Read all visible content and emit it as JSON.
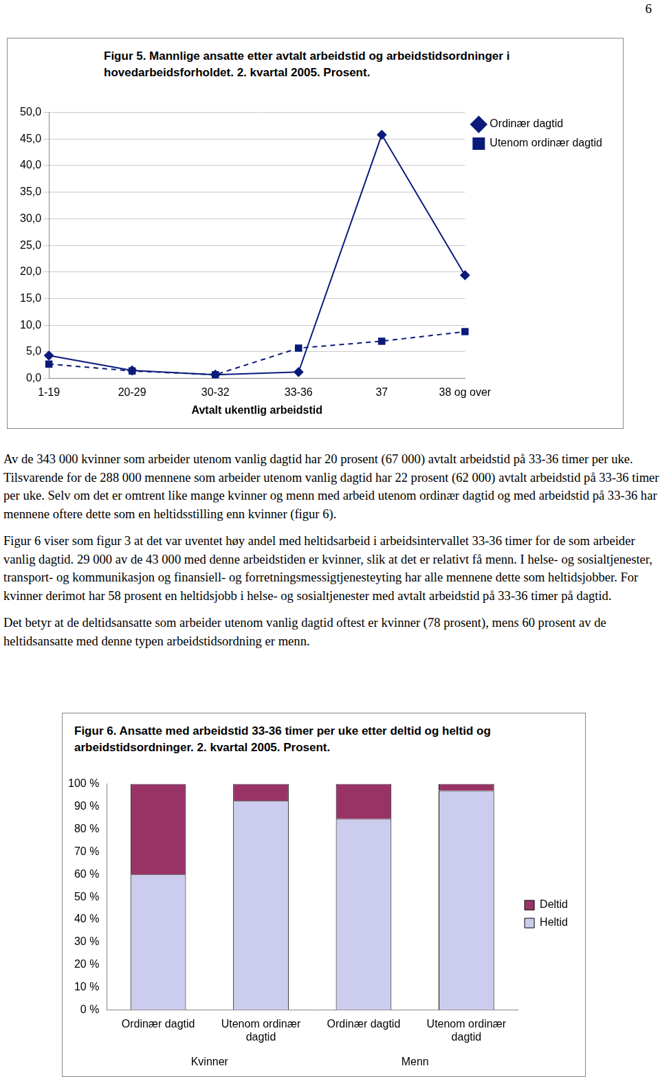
{
  "page_number": "6",
  "chart_data": [
    {
      "type": "line",
      "title": "Figur 5. Mannlige ansatte etter avtalt arbeidstid og arbeidstidsordninger i hovedarbeidsforholdet. 2. kvartal 2005. Prosent.",
      "x_label": "Avtalt ukentlig arbeidstid",
      "categories": [
        "1-19",
        "20-29",
        "30-32",
        "33-36",
        "37",
        "38 og over"
      ],
      "series": [
        {
          "name": "Ordinær dagtid",
          "color": "#0a1a7a",
          "marker": "diamond",
          "line_style": "solid",
          "values": [
            4.3,
            1.5,
            0.7,
            1.2,
            45.8,
            19.4
          ]
        },
        {
          "name": "Utenom ordinær dagtid",
          "color": "#0a1a7a",
          "marker": "square",
          "line_style": "dashed",
          "values": [
            2.7,
            1.4,
            0.7,
            5.7,
            7.0,
            8.8
          ]
        }
      ],
      "ylim": [
        0,
        50
      ],
      "yticks": [
        {
          "value": 0,
          "label": "0,0"
        },
        {
          "value": 5,
          "label": "5,0"
        },
        {
          "value": 10,
          "label": "10,0"
        },
        {
          "value": 15,
          "label": "15,0"
        },
        {
          "value": 20,
          "label": "20,0"
        },
        {
          "value": 25,
          "label": "25,0"
        },
        {
          "value": 30,
          "label": "30,0"
        },
        {
          "value": 35,
          "label": "35,0"
        },
        {
          "value": 40,
          "label": "40,0"
        },
        {
          "value": 45,
          "label": "45,0"
        },
        {
          "value": 50,
          "label": "50,0"
        }
      ],
      "grid": true,
      "legend": "right"
    },
    {
      "type": "bar",
      "title": "Figur 6. Ansatte med arbeidstid 33-36 timer per uke etter deltid og heltid og arbeidstidsordninger. 2. kvartal 2005. Prosent.",
      "categories": [
        "Ordinær dagtid",
        "Utenom ordinær dagtid",
        "Ordinær dagtid",
        "Utenom ordinær dagtid"
      ],
      "groups": [
        "Kvinner",
        "Kvinner",
        "Menn",
        "Menn"
      ],
      "series": [
        {
          "name": "Heltid",
          "color": "#ccccee",
          "values": [
            60,
            92.5,
            84.5,
            97
          ]
        },
        {
          "name": "Deltid",
          "color": "#993366",
          "values": [
            40,
            7.5,
            15.5,
            3
          ]
        }
      ],
      "stacked": true,
      "ylim": [
        0,
        100
      ],
      "yticks": [
        {
          "value": 0,
          "label": "0 %"
        },
        {
          "value": 10,
          "label": "10 %"
        },
        {
          "value": 20,
          "label": "20 %"
        },
        {
          "value": 30,
          "label": "30 %"
        },
        {
          "value": 40,
          "label": "40 %"
        },
        {
          "value": 50,
          "label": "50 %"
        },
        {
          "value": 60,
          "label": "60 %"
        },
        {
          "value": 70,
          "label": "70 %"
        },
        {
          "value": 80,
          "label": "80 %"
        },
        {
          "value": 90,
          "label": "90 %"
        },
        {
          "value": 100,
          "label": "100 %"
        }
      ],
      "grid": false,
      "legend": "right"
    }
  ],
  "paragraphs": [
    "Av de 343 000 kvinner som arbeider utenom vanlig dagtid har 20 prosent (67 000) avtalt arbeidstid på 33-36 timer per uke. Tilsvarende for de 288 000 mennene som arbeider utenom vanlig dagtid har 22 prosent (62 000) avtalt arbeidstid på 33-36 timer per uke. Selv om det er omtrent like mange kvinner og menn med arbeid utenom ordinær dagtid og med arbeidstid på 33-36 har mennene oftere dette som en heltidsstilling enn kvinner (figur 6).",
    "Figur 6 viser som figur 3 at det var uventet høy andel med heltidsarbeid i arbeidsintervallet 33-36 timer for de som arbeider vanlig dagtid. 29 000 av de 43 000 med denne arbeidstiden er kvinner, slik at det er relativt få menn. I helse- og sosialtjenester, transport- og kommunikasjon og finansiell- og forretningsmessigtjenesteyting har alle mennene dette som heltidsjobber. For kvinner derimot har 58 prosent en heltidsjobb i helse- og sosialtjenester med avtalt arbeidstid på 33-36 timer på dagtid.",
    "Det betyr at de deltidsansatte som arbeider utenom vanlig dagtid oftest er kvinner (78 prosent), mens 60 prosent av de heltidsansatte med denne typen arbeidstidsordning er menn."
  ]
}
